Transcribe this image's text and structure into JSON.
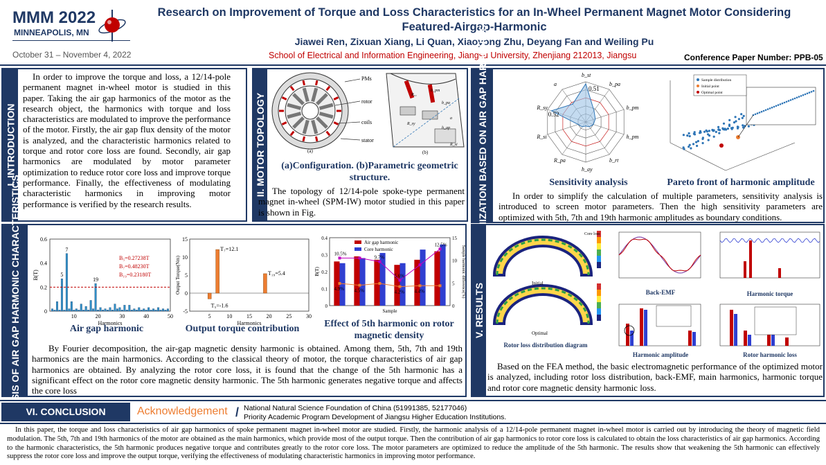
{
  "header": {
    "conf_name": "MMM 2022",
    "conf_city": "MINNEAPOLIS, MN",
    "conf_dates": "October 31 – November 4, 2022",
    "title": "Research on Improvement of Torque and Loss Characteristics for an In-Wheel Permanent Magnet Motor Considering Featured-Airgap-Harmonic",
    "authors": "Jiawei Ren, Zixuan Xiang, Li Quan, Xiaoyong Zhu, Deyang Fan and Weiling Pu",
    "affiliation": "School of Electrical and Information Engineering, Jiangsu University, Zhenjiang 212013, Jiangsu",
    "paper_number": "Conference Paper Number: PPB-05"
  },
  "sections": {
    "intro": {
      "label": "I. INTRODUCTION",
      "text": "In order to improve the torque and loss, a 12/14-pole permanent magnet in-wheel motor is studied in this paper. Taking the air gap harmonics of the motor as the research object, the harmonics with torque and loss characteristics are modulated to improve the performance of the motor. Firstly, the air gap flux density of the motor is analyzed, and the characteristic harmonics related to torque and rotor core loss are found. Secondly, air gap harmonics are modulated by motor parameter optimization to reduce rotor core loss and improve torque performance. Finally, the effectiveness of modulating characteristic harmonics in improving motor performance is verified by the research results."
    },
    "topology": {
      "label": "II. MOTOR TOPOLOGY",
      "caption": "(a)Configuration. (b)Parametric geometric structure.",
      "text": "The topology of 12/14-pole spoke-type permanent magnet in-wheel (SPM-IW) motor studied in this paper is shown in Fig.",
      "labels": [
        "PMs",
        "rotor",
        "coils",
        "stator",
        "(a)",
        "(b)"
      ]
    },
    "optimization": {
      "label": "IV. OPTIMIZATION BASED ON AIR GAP HARMONICS",
      "caption_left": "Sensitivity analysis",
      "caption_right": "Pareto front of harmonic amplitude",
      "text": "In order to simplify the calculation of multiple parameters, sensitivity analysis is introduced to screen motor parameters. Then the high sensitivity parameters are optimized with 5th, 7th and 19th harmonic amplitudes as boundary conditions.",
      "radar_labels": [
        "b_st",
        "b_pa",
        "b_pm",
        "h_pm",
        "b_rt",
        "h_ay",
        "R_pa",
        "R_si",
        "R_sy",
        "a"
      ],
      "radar_values": [
        "0.51",
        "0.52"
      ],
      "pareto_legend": [
        "Sample distribution",
        "Initial point",
        "Optimal point"
      ]
    },
    "analysis": {
      "label": "III. ANALYSIS OF AIR GAP HARMONIC CHARACTERISTICS",
      "caption1": "Air gap harmonic",
      "caption2": "Output torque contribution",
      "caption3": "Effect of 5th harmonic on rotor magnetic density",
      "text": "By Fourier decomposition, the air-gap magnetic density harmonic is obtained. Among them, 5th, 7th and 19th harmonics are the main harmonics.  According to the classical theory of motor, the torque characteristics of air gap harmonics are obtained. By analyzing the rotor core loss, it is found that the change of the 5th harmonic has a significant effect on the rotor core magnetic density harmonic. The 5th harmonic generates negative torque and affects the core loss"
    },
    "results": {
      "label": "V. RESULTS",
      "caption_rotor_loss": "Rotor loss distribution diagram",
      "caption_backemf": "Back-EMF",
      "caption_harm_torque": "Harmonic torque",
      "caption_harm_amp": "Harmonic amplitude",
      "caption_rotor_harm": "Rotor harmonic loss",
      "label_initial": "Initial",
      "label_optimal": "Optimal",
      "text": "Based on the FEA method, the basic electromagnetic performance of the optimized motor is analyzed, including rotor loss distribution, back-EMF, main harmonics, harmonic torque and rotor core magnetic density harmonic loss."
    },
    "conclusion": {
      "label": "VI. CONCLUSION",
      "ack_title": "Acknowledgement",
      "ack_line1": "National Natural Science Foundation of China (51991385, 52177046)",
      "ack_line2": "Priority Academic Program Development of Jiangsu Higher Education Institutions.",
      "text": "In this paper, the torque and loss characteristics of air gap harmonics of spoke permanent magnet in-wheel motor are studied. Firstly, the harmonic analysis of a 12/14-pole permanent magnet in-wheel motor is carried out by introducing the theory of magnetic field modulation. The 5th, 7th and 19th harmonics of the motor are obtained as the main harmonics, which provide most of the output torque. Then the contribution of air gap harmonics to rotor core loss is calculated to obtain the loss characteristics of air gap harmonics. According to the harmonic characteristics, the 5th harmonic produces negative torque and contributes greatly to the rotor core loss. The motor parameters are optimized to reduce the amplitude of the 5th harmonic. The results show that weakening the 5th harmonic can effectively suppress the rotor core loss and improve the output torque, verifying the effectiveness of modulating characteristic harmonics in improving motor performance."
    }
  },
  "chart_data": [
    {
      "type": "bar",
      "ylabel": "B(T)",
      "xlabel": "Harmonics",
      "ylim": [
        0,
        0.6
      ],
      "xlim": [
        0,
        50
      ],
      "yticks": [
        "0",
        "0.2",
        "0.4",
        "0.6"
      ],
      "xticks": [
        "10",
        "20",
        "30",
        "40",
        "50"
      ],
      "x": [
        1,
        2,
        3,
        4,
        5,
        6,
        7,
        8,
        9,
        10,
        11,
        12,
        13,
        14,
        15,
        16,
        17,
        18,
        19,
        20,
        21,
        22,
        23,
        24,
        25,
        26,
        27,
        28,
        29,
        30,
        31,
        32,
        33,
        34,
        35,
        36,
        37,
        38,
        39,
        40,
        41,
        42,
        43,
        44,
        45,
        46,
        47,
        48,
        49
      ],
      "values": [
        0.02,
        0.01,
        0.08,
        0.01,
        0.27,
        0.01,
        0.48,
        0.02,
        0.08,
        0.01,
        0.02,
        0.01,
        0.06,
        0.01,
        0.04,
        0.01,
        0.09,
        0.02,
        0.23,
        0.01,
        0.03,
        0.01,
        0.02,
        0.01,
        0.03,
        0.01,
        0.06,
        0.02,
        0.03,
        0.01,
        0.05,
        0.01,
        0.05,
        0.01,
        0.02,
        0.01,
        0.03,
        0.01,
        0.02,
        0.01,
        0.03,
        0.01,
        0.02,
        0.01,
        0.03,
        0.01,
        0.02,
        0.01,
        0.02
      ],
      "annotations": [
        "5",
        "7",
        "19"
      ],
      "legend_lines": [
        "B₅=0.27238T",
        "B₇=0.48230T",
        "B₁₉=0.23180T"
      ],
      "threshold": 0.2
    },
    {
      "type": "bar",
      "ylabel": "Output Torque(Nm)",
      "xlabel": "Harmonics",
      "ylim": [
        -5,
        15
      ],
      "xlim": [
        0,
        30
      ],
      "yticks": [
        "-5",
        "0",
        "5",
        "10",
        "15"
      ],
      "xticks": [
        "5",
        "10",
        "15",
        "20",
        "25",
        "30"
      ],
      "x": [
        5,
        7,
        19
      ],
      "values": [
        -1.6,
        12.1,
        5.4
      ],
      "annotations": [
        "T₅=-1.6",
        "T₇=12.1",
        "T₁₉=5.4"
      ]
    },
    {
      "type": "bar",
      "ylabel": "B(T)",
      "y2label": "Sample harmonic difference(%)",
      "xlabel": "Sample",
      "ylim": [
        0,
        0.4
      ],
      "y2lim": [
        0,
        15
      ],
      "yticks": [
        "0",
        "0.1",
        "0.2",
        "0.3",
        "0.4"
      ],
      "y2ticks": [
        "0",
        "5",
        "10",
        "15"
      ],
      "categories": [
        "1",
        "2",
        "3",
        "4",
        "5",
        "6"
      ],
      "series": [
        {
          "name": "Air gap harmonic",
          "values": [
            0.26,
            0.29,
            0.27,
            0.24,
            0.27,
            0.32
          ]
        },
        {
          "name": "Core  harmonic",
          "values": [
            0.25,
            0.28,
            0.31,
            0.25,
            0.33,
            0.36
          ]
        }
      ],
      "line_series": [
        {
          "values": [
            10.5,
            10.5,
            9.7,
            5.6,
            9.0,
            12.5
          ],
          "labels": [
            "10.5%",
            "",
            "9.7%",
            "5.6%",
            "",
            "12.5%"
          ]
        },
        {
          "values": [
            4.9,
            4.5,
            4.9,
            4.2,
            4.4,
            4.4
          ],
          "labels": [
            "4.9%",
            "4.5%",
            "",
            "4.2%",
            "4.4%",
            ""
          ]
        }
      ]
    }
  ],
  "colors": {
    "navy": "#1f3864",
    "red": "#c00000",
    "blue_bar": "#2f8fc6",
    "orange": "#ed7d31"
  }
}
